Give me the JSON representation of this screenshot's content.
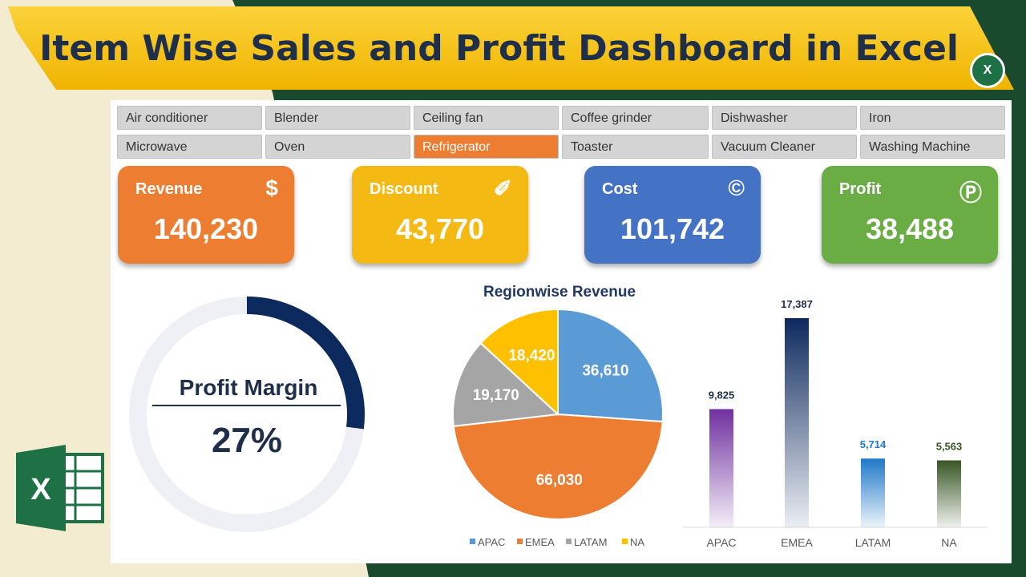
{
  "title": "Item Wise Sales and Profit Dashboard in Excel",
  "slicers": [
    "Air conditioner",
    "Blender",
    "Ceiling fan",
    "Coffee grinder",
    "Dishwasher",
    "Iron",
    "Microwave",
    "Oven",
    "Refrigerator",
    "Toaster",
    "Vacuum Cleaner",
    "Washing Machine"
  ],
  "selected_slicer": "Refrigerator",
  "cards": [
    {
      "label": "Revenue",
      "value": "140,230",
      "icon": "money-bag-icon",
      "color": "#ed7d31"
    },
    {
      "label": "Discount",
      "value": "43,770",
      "icon": "discount-tag-icon",
      "color": "#f5b914"
    },
    {
      "label": "Cost",
      "value": "101,742",
      "icon": "copyright-icon",
      "color": "#4472c4"
    },
    {
      "label": "Profit",
      "value": "38,488",
      "icon": "p-circle-icon",
      "color": "#6aad45"
    }
  ],
  "profit_margin": {
    "label": "Profit Margin",
    "value": "27%",
    "fraction": 0.27,
    "color": "#0d2a5e"
  },
  "chart_data": [
    {
      "type": "pie",
      "title": "Regionwise Revenue",
      "categories": [
        "APAC",
        "EMEA",
        "LATAM",
        "NA"
      ],
      "values": [
        36610,
        66030,
        19170,
        18420
      ],
      "labels": [
        "36,610",
        "66,030",
        "19,170",
        "18,420"
      ],
      "colors": [
        "#5b9bd5",
        "#ed7d31",
        "#a5a5a5",
        "#ffc000"
      ],
      "legend": "bottom"
    },
    {
      "type": "bar",
      "categories": [
        "APAC",
        "EMEA",
        "LATAM",
        "NA"
      ],
      "values": [
        9825,
        17387,
        5714,
        5563
      ],
      "labels": [
        "9,825",
        "17,387",
        "5,714",
        "5,563"
      ],
      "colors": [
        "#7030a0",
        "#0d2a5e",
        "#1f78c8",
        "#375623"
      ],
      "grid": false
    }
  ]
}
